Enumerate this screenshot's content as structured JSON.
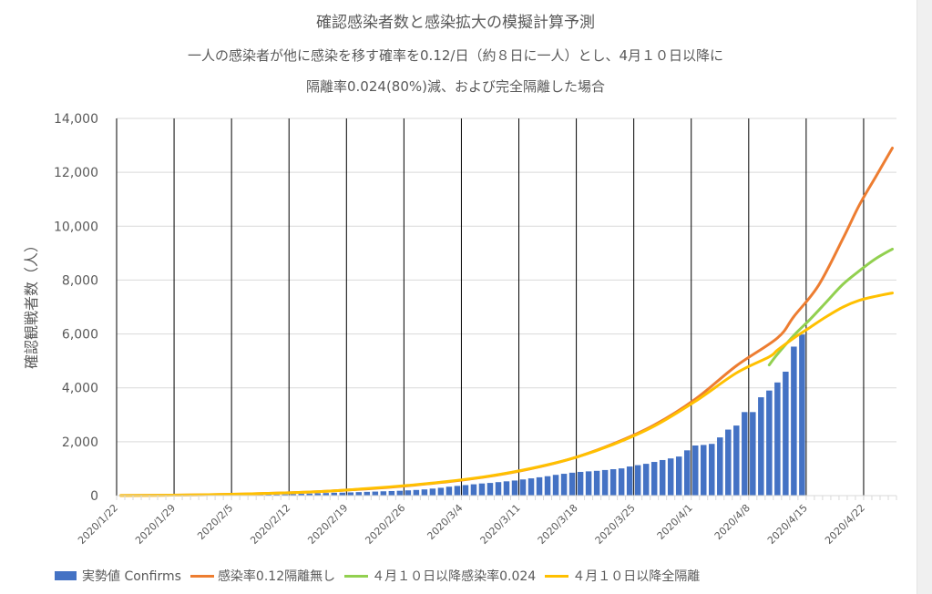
{
  "chart_data": {
    "type": "bar",
    "title": "確認感染者数と感染拡大の模擬計算予測",
    "subtitle_line1": "一人の感染者が他に感染を移す確率を0.12/日（約８日に一人）とし、4月１０日以降に",
    "subtitle_line2": "隔離率0.024(80%)減、および完全隔離した場合",
    "ylabel": "確認観戦者数（人）",
    "xlabel": "",
    "ylim": [
      0,
      14000
    ],
    "y_ticks": [
      "0",
      "2,000",
      "4,000",
      "6,000",
      "8,000",
      "10,000",
      "12,000",
      "14,000"
    ],
    "x_start": "2020/1/22",
    "x_end": "2020/4/26",
    "x_ticks": [
      "2020/1/22",
      "2020/1/29",
      "2020/2/5",
      "2020/2/12",
      "2020/2/19",
      "2020/2/26",
      "2020/3/4",
      "2020/3/11",
      "2020/3/18",
      "2020/3/25",
      "2020/4/1",
      "2020/4/8",
      "2020/4/15",
      "2020/4/22"
    ],
    "bars": {
      "name": "実勢値 Confirms",
      "color": "#4472c4",
      "values": [
        2,
        2,
        3,
        4,
        4,
        5,
        8,
        11,
        14,
        17,
        20,
        20,
        20,
        22,
        25,
        28,
        33,
        35,
        38,
        40,
        45,
        55,
        65,
        75,
        85,
        95,
        105,
        110,
        120,
        130,
        140,
        150,
        160,
        170,
        180,
        195,
        210,
        230,
        260,
        290,
        330,
        360,
        390,
        420,
        450,
        470,
        500,
        530,
        560,
        600,
        640,
        680,
        720,
        770,
        810,
        850,
        880,
        900,
        920,
        950,
        980,
        1010,
        1080,
        1130,
        1180,
        1250,
        1320,
        1380,
        1450,
        1680,
        1860,
        1880,
        1920,
        2160,
        2450,
        2600,
        3100,
        3100,
        3650,
        3900,
        4200,
        4600,
        5530,
        5980
      ]
    },
    "series": [
      {
        "name": "感染率0.12隔離無し",
        "color": "#ed7d31",
        "start": "2020/1/22",
        "x": [
          0,
          5,
          10,
          15,
          20,
          25,
          30,
          35,
          40,
          45,
          50,
          55,
          60,
          65,
          70,
          75,
          80,
          82,
          85,
          88,
          90,
          92,
          94
        ],
        "values": [
          5,
          15,
          30,
          60,
          100,
          160,
          250,
          370,
          520,
          720,
          1000,
          1380,
          1920,
          2620,
          3580,
          4820,
          5850,
          6650,
          7800,
          9550,
          10800,
          11850,
          12900
        ]
      },
      {
        "name": "４月１０日以降感染率0.024",
        "color": "#92d050",
        "start": "2020/4/10",
        "x": [
          79,
          80,
          82,
          84,
          86,
          88,
          90,
          92,
          94
        ],
        "values": [
          4850,
          5250,
          5950,
          6550,
          7200,
          7850,
          8350,
          8800,
          9150
        ]
      },
      {
        "name": "４月１０日以降全隔離",
        "color": "#ffc000",
        "start": "2020/1/22",
        "x": [
          0,
          5,
          10,
          15,
          20,
          25,
          30,
          35,
          40,
          45,
          50,
          55,
          60,
          65,
          70,
          75,
          79,
          80,
          82,
          84,
          86,
          88,
          90,
          92,
          94
        ],
        "values": [
          5,
          15,
          30,
          60,
          100,
          160,
          260,
          380,
          530,
          730,
          1010,
          1380,
          1900,
          2580,
          3500,
          4550,
          5150,
          5400,
          5850,
          6250,
          6650,
          7000,
          7250,
          7400,
          7520
        ]
      }
    ]
  }
}
